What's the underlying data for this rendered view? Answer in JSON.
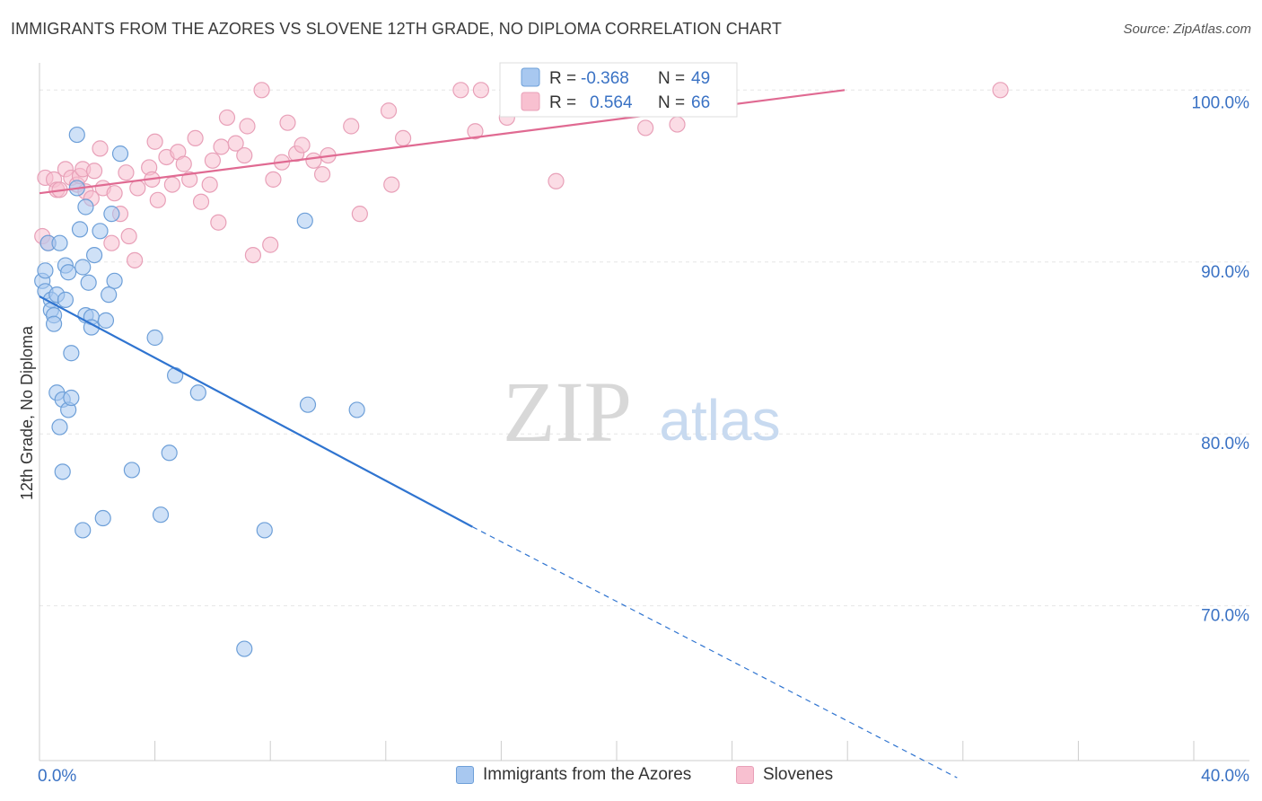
{
  "title": "IMMIGRANTS FROM THE AZORES VS SLOVENE 12TH GRADE, NO DIPLOMA CORRELATION CHART",
  "source": "Source: ZipAtlas.com",
  "watermark": {
    "zip": "ZIP",
    "atlas": "atlas"
  },
  "colors": {
    "blue_fill": "#a8c8f0",
    "blue_stroke": "#6d9fd8",
    "blue_line": "#2f74d0",
    "pink_fill": "#f8c0d0",
    "pink_stroke": "#e8a0b8",
    "pink_line": "#e06a92",
    "tick_label": "#3a72c4",
    "grid": "#e6e6e6"
  },
  "stats_legend": [
    {
      "r_label": "R =",
      "r_value": "-0.368",
      "n_label": "N =",
      "n_value": "49",
      "color": "blue"
    },
    {
      "r_label": "R =",
      "r_value": "0.564",
      "n_label": "N =",
      "n_value": "66",
      "color": "pink"
    }
  ],
  "chart_data": {
    "type": "scatter",
    "ylabel": "12th Grade, No Diploma",
    "xlim": [
      0,
      40
    ],
    "ylim": [
      61,
      102
    ],
    "x_tick_labels": [
      {
        "value": 0,
        "label": "0.0%"
      },
      {
        "value": 40,
        "label": "40.0%"
      }
    ],
    "y_tick_labels": [
      {
        "value": 100,
        "label": "100.0%"
      },
      {
        "value": 90,
        "label": "90.0%"
      },
      {
        "value": 80,
        "label": "80.0%"
      },
      {
        "value": 70,
        "label": "70.0%"
      }
    ],
    "grid": true,
    "legend": "bottom-center",
    "series": [
      {
        "name": "Immigrants from the Azores",
        "color": "blue",
        "points": [
          [
            0.1,
            88.9
          ],
          [
            0.2,
            88.3
          ],
          [
            0.3,
            91.1
          ],
          [
            0.4,
            87.8
          ],
          [
            0.4,
            87.2
          ],
          [
            0.5,
            86.9
          ],
          [
            0.5,
            86.4
          ],
          [
            0.6,
            82.4
          ],
          [
            0.6,
            88.1
          ],
          [
            0.7,
            91.1
          ],
          [
            0.7,
            80.4
          ],
          [
            0.8,
            82.0
          ],
          [
            0.8,
            77.8
          ],
          [
            0.9,
            87.8
          ],
          [
            0.9,
            89.8
          ],
          [
            1.0,
            89.4
          ],
          [
            1.0,
            81.4
          ],
          [
            1.1,
            82.1
          ],
          [
            1.1,
            84.7
          ],
          [
            1.3,
            94.3
          ],
          [
            1.3,
            97.4
          ],
          [
            1.4,
            91.9
          ],
          [
            1.5,
            89.7
          ],
          [
            1.5,
            74.4
          ],
          [
            1.6,
            93.2
          ],
          [
            1.6,
            86.9
          ],
          [
            1.7,
            88.8
          ],
          [
            1.8,
            86.8
          ],
          [
            1.8,
            86.2
          ],
          [
            1.9,
            90.4
          ],
          [
            2.1,
            91.8
          ],
          [
            2.2,
            75.1
          ],
          [
            2.3,
            86.6
          ],
          [
            2.4,
            88.1
          ],
          [
            2.5,
            92.8
          ],
          [
            2.6,
            88.9
          ],
          [
            2.8,
            96.3
          ],
          [
            3.2,
            77.9
          ],
          [
            4.0,
            85.6
          ],
          [
            4.2,
            75.3
          ],
          [
            4.5,
            78.9
          ],
          [
            4.7,
            83.4
          ],
          [
            5.5,
            82.4
          ],
          [
            7.8,
            74.4
          ],
          [
            9.2,
            92.4
          ],
          [
            9.3,
            81.7
          ],
          [
            11.0,
            81.4
          ],
          [
            7.1,
            67.5
          ],
          [
            0.2,
            89.5
          ]
        ]
      },
      {
        "name": "Slovenes",
        "color": "pink",
        "points": [
          [
            0.1,
            91.5
          ],
          [
            0.2,
            94.9
          ],
          [
            0.3,
            91.1
          ],
          [
            0.5,
            94.8
          ],
          [
            0.6,
            94.2
          ],
          [
            0.7,
            94.2
          ],
          [
            0.9,
            95.4
          ],
          [
            1.1,
            94.9
          ],
          [
            1.3,
            94.5
          ],
          [
            1.4,
            95.0
          ],
          [
            1.5,
            95.4
          ],
          [
            1.6,
            94.1
          ],
          [
            1.8,
            93.7
          ],
          [
            1.9,
            95.3
          ],
          [
            2.1,
            96.6
          ],
          [
            2.2,
            94.3
          ],
          [
            2.5,
            91.1
          ],
          [
            2.6,
            94.0
          ],
          [
            2.8,
            92.8
          ],
          [
            3.0,
            95.2
          ],
          [
            3.1,
            91.5
          ],
          [
            3.3,
            90.1
          ],
          [
            3.4,
            94.3
          ],
          [
            3.8,
            95.5
          ],
          [
            3.9,
            94.8
          ],
          [
            4.0,
            97.0
          ],
          [
            4.1,
            93.6
          ],
          [
            4.4,
            96.1
          ],
          [
            4.6,
            94.5
          ],
          [
            4.8,
            96.4
          ],
          [
            5.0,
            95.7
          ],
          [
            5.2,
            94.8
          ],
          [
            5.4,
            97.2
          ],
          [
            5.6,
            93.5
          ],
          [
            5.9,
            94.5
          ],
          [
            6.0,
            95.9
          ],
          [
            6.2,
            92.3
          ],
          [
            6.3,
            96.7
          ],
          [
            6.5,
            98.4
          ],
          [
            6.8,
            96.9
          ],
          [
            7.1,
            96.2
          ],
          [
            7.2,
            97.9
          ],
          [
            7.4,
            90.4
          ],
          [
            7.7,
            100.0
          ],
          [
            8.0,
            91.0
          ],
          [
            8.1,
            94.8
          ],
          [
            8.4,
            95.8
          ],
          [
            8.6,
            98.1
          ],
          [
            8.9,
            96.3
          ],
          [
            9.1,
            96.8
          ],
          [
            9.5,
            95.9
          ],
          [
            9.8,
            95.1
          ],
          [
            10.0,
            96.2
          ],
          [
            10.8,
            97.9
          ],
          [
            11.1,
            92.8
          ],
          [
            12.1,
            98.8
          ],
          [
            12.2,
            94.5
          ],
          [
            12.6,
            97.2
          ],
          [
            14.6,
            100.0
          ],
          [
            15.1,
            97.6
          ],
          [
            15.3,
            100.0
          ],
          [
            16.2,
            98.4
          ],
          [
            17.9,
            94.7
          ],
          [
            21.0,
            97.8
          ],
          [
            22.1,
            98.0
          ],
          [
            33.3,
            100.0
          ]
        ]
      }
    ],
    "trend_lines": [
      {
        "series": "Immigrants from the Azores",
        "solid_from": [
          0,
          88.0
        ],
        "solid_to": [
          15.0,
          74.6
        ],
        "dashed_to": [
          31.8,
          60.0
        ]
      },
      {
        "series": "Slovenes",
        "from": [
          0,
          94.0
        ],
        "to": [
          27.9,
          100.0
        ]
      }
    ]
  }
}
